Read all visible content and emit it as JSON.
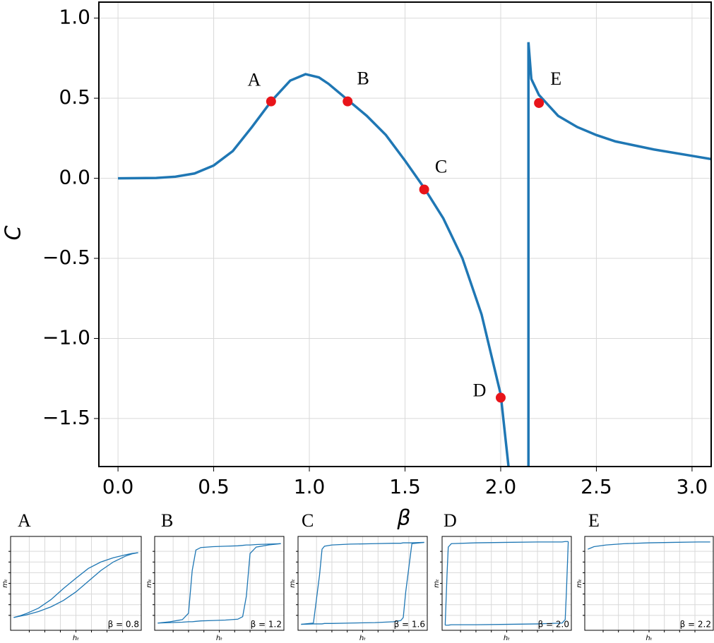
{
  "chart_data": [
    {
      "type": "line",
      "x_label": "β",
      "y_label": "C",
      "xlim": [
        -0.1,
        3.1
      ],
      "ylim": [
        -1.8,
        1.1
      ],
      "grid": true,
      "xticks": [
        {
          "value": 0,
          "label": "0.0"
        },
        0.5,
        {
          "value": 1,
          "label": "1.0"
        },
        1.5,
        {
          "value": 2,
          "label": "2.0"
        },
        2.5,
        {
          "value": 3,
          "label": "3.0"
        }
      ],
      "yticks": [
        {
          "value": -1.5,
          "label": "−1.5"
        },
        {
          "value": -1,
          "label": "−1.0"
        },
        {
          "value": -0.5,
          "label": "−0.5"
        },
        {
          "value": 0,
          "label": "0.0"
        },
        0.5,
        {
          "value": 1,
          "label": "1.0"
        }
      ],
      "x": [
        0,
        0.2,
        0.3,
        0.4,
        0.5,
        0.6,
        0.7,
        0.8,
        0.9,
        0.98,
        1.05,
        1.1,
        1.2,
        1.3,
        1.4,
        1.5,
        1.6,
        1.7,
        1.8,
        1.9,
        2.0,
        2.05,
        2.1,
        2.145,
        2.145,
        2.16,
        2.2,
        2.3,
        2.4,
        2.5,
        2.6,
        2.8,
        3.0,
        3.1
      ],
      "series": [
        {
          "color": "#1f77b4",
          "values": [
            0,
            0.002,
            0.01,
            0.03,
            0.08,
            0.17,
            0.32,
            0.48,
            0.61,
            0.65,
            0.63,
            0.59,
            0.49,
            0.39,
            0.27,
            0.11,
            -0.06,
            -0.25,
            -0.5,
            -0.85,
            -1.35,
            -1.9,
            null,
            -1.9,
            0.85,
            0.62,
            0.52,
            0.39,
            0.32,
            0.27,
            0.23,
            0.18,
            0.14,
            0.12
          ]
        }
      ],
      "points": {
        "color": "#e8141a",
        "x": [
          0.8,
          1.2,
          1.6,
          2.0,
          2.2
        ],
        "values": [
          0.48,
          0.48,
          -0.07,
          -1.37,
          0.47
        ],
        "labels": [
          "A",
          "B",
          "C",
          "D",
          "E"
        ]
      }
    },
    {
      "type": "line",
      "title": "A",
      "x_label": "hₜ",
      "y_label": "mₜ",
      "annotation": "β = 0.8",
      "xlim": [
        -1.05,
        1.05
      ],
      "ylim": [
        -1.1,
        1.1
      ],
      "grid": true,
      "xticks": [
        -0.75,
        -0.5,
        -0.25,
        0,
        0.25,
        0.5,
        0.75
      ],
      "yticks": [
        -0.75,
        -0.5,
        -0.25,
        0,
        0.25,
        0.5,
        0.75
      ],
      "x": [
        -1,
        -0.9,
        -0.8,
        -0.6,
        -0.4,
        -0.2,
        0,
        0.2,
        0.4,
        0.6,
        0.8,
        0.9,
        1
      ],
      "series": [
        {
          "color": "#1f77b4",
          "values": [
            -0.8,
            -0.77,
            -0.74,
            -0.66,
            -0.55,
            -0.4,
            -0.2,
            0.05,
            0.3,
            0.5,
            0.64,
            0.69,
            0.72
          ]
        },
        {
          "color": "#1f77b4",
          "values": [
            -0.8,
            -0.76,
            -0.71,
            -0.58,
            -0.38,
            -0.12,
            0.12,
            0.35,
            0.5,
            0.6,
            0.67,
            0.7,
            0.72
          ]
        }
      ]
    },
    {
      "type": "line",
      "title": "B",
      "x_label": "hₜ",
      "y_label": "mₜ",
      "annotation": "β = 1.2",
      "xlim": [
        -1.05,
        1.05
      ],
      "ylim": [
        -1.1,
        1.1
      ],
      "grid": true,
      "xticks": [
        -0.75,
        -0.5,
        -0.25,
        0,
        0.25,
        0.5,
        0.75
      ],
      "yticks": [
        -0.75,
        -0.5,
        -0.25,
        0,
        0.25,
        0.5,
        0.75
      ],
      "x": [
        -1,
        -0.8,
        -0.6,
        -0.5,
        -0.44,
        -0.38,
        -0.3,
        -0.1,
        0.1,
        0.3,
        0.38,
        0.44,
        0.5,
        0.6,
        0.8,
        1
      ],
      "series": [
        {
          "color": "#1f77b4",
          "values": [
            -0.93,
            -0.92,
            -0.91,
            -0.9,
            -0.9,
            -0.89,
            -0.88,
            -0.87,
            -0.86,
            -0.84,
            -0.78,
            -0.3,
            0.7,
            0.85,
            0.9,
            0.93
          ]
        },
        {
          "color": "#1f77b4",
          "values": [
            -0.93,
            -0.9,
            -0.85,
            -0.7,
            0.3,
            0.78,
            0.84,
            0.86,
            0.87,
            0.88,
            0.89,
            0.9,
            0.9,
            0.91,
            0.92,
            0.93
          ]
        }
      ]
    },
    {
      "type": "line",
      "title": "C",
      "x_label": "hₜ",
      "y_label": "mₜ",
      "annotation": "β = 1.6",
      "xlim": [
        -1.05,
        1.05
      ],
      "ylim": [
        -1.1,
        1.1
      ],
      "grid": true,
      "xticks": [
        -0.75,
        -0.5,
        -0.25,
        0,
        0.25,
        0.5,
        0.75
      ],
      "yticks": [
        -0.75,
        -0.5,
        -0.25,
        0,
        0.25,
        0.5,
        0.75
      ],
      "x": [
        -1,
        -0.8,
        -0.7,
        -0.66,
        -0.62,
        -0.5,
        -0.2,
        0.2,
        0.5,
        0.62,
        0.66,
        0.7,
        0.8,
        1
      ],
      "series": [
        {
          "color": "#1f77b4",
          "values": [
            -0.96,
            -0.95,
            -0.95,
            -0.95,
            -0.94,
            -0.94,
            -0.93,
            -0.92,
            -0.9,
            -0.87,
            -0.8,
            -0.2,
            0.93,
            0.96
          ]
        },
        {
          "color": "#1f77b4",
          "values": [
            -0.96,
            -0.93,
            0.2,
            0.8,
            0.87,
            0.9,
            0.92,
            0.93,
            0.94,
            0.94,
            0.95,
            0.95,
            0.95,
            0.96
          ]
        }
      ]
    },
    {
      "type": "line",
      "title": "D",
      "x_label": "hₜ",
      "y_label": "mₜ",
      "annotation": "β = 2.0",
      "xlim": [
        -1.05,
        1.05
      ],
      "ylim": [
        -1.1,
        1.1
      ],
      "grid": true,
      "xticks": [
        -0.75,
        -0.5,
        -0.25,
        0,
        0.25,
        0.5,
        0.75
      ],
      "yticks": [
        -0.75,
        -0.5,
        -0.25,
        0,
        0.25,
        0.5,
        0.75
      ],
      "x": [
        -1,
        -0.97,
        -0.95,
        -0.9,
        -0.5,
        0,
        0.5,
        0.9,
        0.95,
        0.97,
        1
      ],
      "series": [
        {
          "color": "#1f77b4",
          "values": [
            -0.98,
            -0.98,
            -0.98,
            -0.97,
            -0.97,
            -0.96,
            -0.95,
            -0.93,
            -0.85,
            -0.2,
            0.98
          ]
        },
        {
          "color": "#1f77b4",
          "values": [
            -0.98,
            0.2,
            0.85,
            0.93,
            0.95,
            0.96,
            0.97,
            0.97,
            0.98,
            0.98,
            0.98
          ]
        }
      ]
    },
    {
      "type": "line",
      "title": "E",
      "x_label": "hₜ",
      "y_label": "mₜ",
      "annotation": "β = 2.2",
      "xlim": [
        -1.05,
        1.05
      ],
      "ylim": [
        -1.1,
        1.1
      ],
      "grid": true,
      "xticks": [
        -0.75,
        -0.5,
        -0.25,
        0,
        0.25,
        0.5,
        0.75
      ],
      "yticks": [
        -0.75,
        -0.5,
        -0.25,
        0,
        0.25,
        0.5,
        0.75
      ],
      "x": [
        -1,
        -0.9,
        -0.7,
        -0.4,
        0,
        0.4,
        0.8,
        1
      ],
      "series": [
        {
          "color": "#1f77b4",
          "values": [
            0.8,
            0.86,
            0.9,
            0.93,
            0.95,
            0.96,
            0.97,
            0.97
          ]
        }
      ]
    }
  ]
}
